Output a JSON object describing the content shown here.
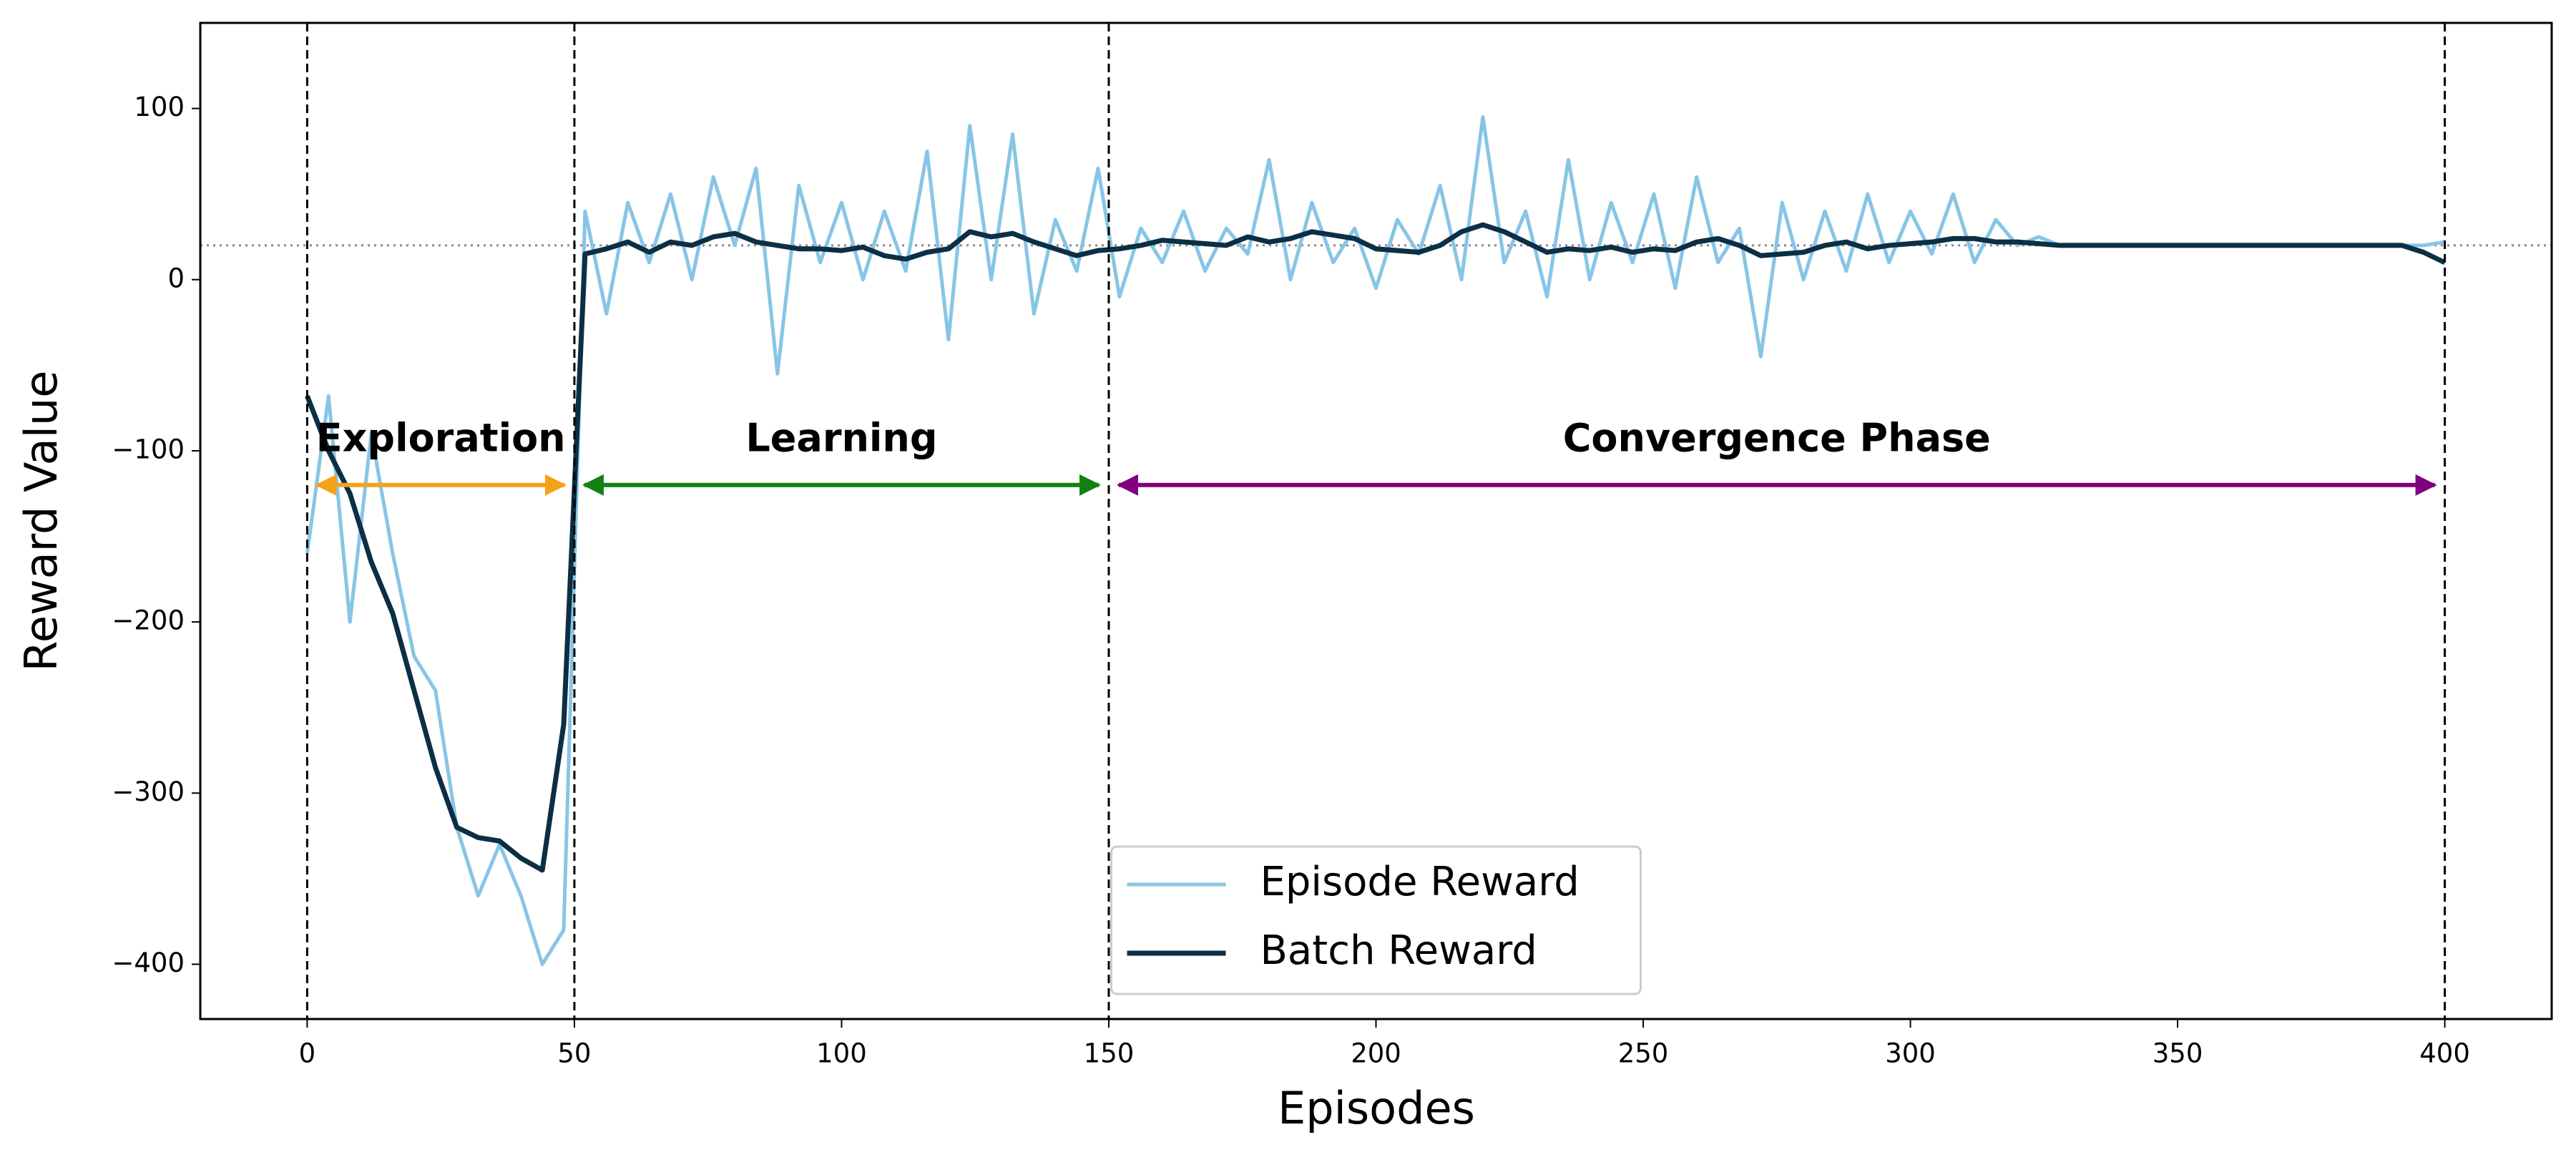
{
  "chart_data": {
    "type": "line",
    "xlabel": "Episodes",
    "ylabel": "Reward Value",
    "x": [
      0,
      4,
      8,
      12,
      16,
      20,
      24,
      28,
      32,
      36,
      40,
      44,
      48,
      52,
      56,
      60,
      64,
      68,
      72,
      76,
      80,
      84,
      88,
      92,
      96,
      100,
      104,
      108,
      112,
      116,
      120,
      124,
      128,
      132,
      136,
      140,
      144,
      148,
      152,
      156,
      160,
      164,
      168,
      172,
      176,
      180,
      184,
      188,
      192,
      196,
      200,
      204,
      208,
      212,
      216,
      220,
      224,
      228,
      232,
      236,
      240,
      244,
      248,
      252,
      256,
      260,
      264,
      268,
      272,
      276,
      280,
      284,
      288,
      292,
      296,
      300,
      304,
      308,
      312,
      316,
      320,
      324,
      328,
      332,
      336,
      340,
      344,
      348,
      352,
      356,
      360,
      364,
      368,
      372,
      376,
      380,
      384,
      388,
      392,
      396,
      400
    ],
    "series": [
      {
        "name": "Episode Reward",
        "color": "#87c5e6",
        "values": [
          -160,
          -68,
          -200,
          -90,
          -160,
          -220,
          -240,
          -320,
          -360,
          -330,
          -360,
          -400,
          -380,
          40,
          -20,
          45,
          10,
          50,
          0,
          60,
          20,
          65,
          -55,
          55,
          10,
          45,
          0,
          40,
          5,
          75,
          -35,
          90,
          0,
          85,
          -20,
          35,
          5,
          65,
          -10,
          30,
          10,
          40,
          5,
          30,
          15,
          70,
          0,
          45,
          10,
          30,
          -5,
          35,
          15,
          55,
          0,
          95,
          10,
          40,
          -10,
          70,
          0,
          45,
          10,
          50,
          -5,
          60,
          10,
          30,
          -45,
          45,
          0,
          40,
          5,
          50,
          10,
          40,
          15,
          50,
          10,
          35,
          20,
          25,
          20,
          20,
          20,
          20,
          20,
          20,
          20,
          20,
          20,
          20,
          20,
          20,
          20,
          20,
          20,
          20,
          20,
          20,
          22
        ]
      },
      {
        "name": "Batch Reward",
        "color": "#0b2f44",
        "values": [
          -68,
          -100,
          -125,
          -165,
          -195,
          -240,
          -285,
          -320,
          -326,
          -328,
          -338,
          -345,
          -260,
          15,
          18,
          22,
          16,
          22,
          20,
          25,
          27,
          22,
          20,
          18,
          18,
          17,
          19,
          14,
          12,
          16,
          18,
          28,
          25,
          27,
          22,
          18,
          14,
          17,
          18,
          20,
          23,
          22,
          21,
          20,
          25,
          22,
          24,
          28,
          26,
          24,
          18,
          17,
          16,
          20,
          28,
          32,
          28,
          22,
          16,
          18,
          17,
          19,
          16,
          18,
          17,
          22,
          24,
          20,
          14,
          15,
          16,
          20,
          22,
          18,
          20,
          21,
          22,
          24,
          24,
          22,
          22,
          21,
          20,
          20,
          20,
          20,
          20,
          20,
          20,
          20,
          20,
          20,
          20,
          20,
          20,
          20,
          20,
          20,
          20,
          16,
          10
        ]
      }
    ],
    "xlim": [
      -20,
      420
    ],
    "ylim": [
      -432,
      150
    ],
    "xticks": [
      0,
      50,
      100,
      150,
      200,
      250,
      300,
      350,
      400
    ],
    "yticks": [
      {
        "value": -400,
        "label": "−400"
      },
      {
        "value": -300,
        "label": "−300"
      },
      {
        "value": -200,
        "label": "−200"
      },
      {
        "value": -100,
        "label": "−100"
      },
      0,
      100
    ],
    "vlines": [
      0,
      50,
      150,
      400
    ],
    "hline": 20,
    "arrow_y": -120,
    "phases": [
      {
        "label": "Exploration",
        "start": 0,
        "end": 50,
        "color": "#f5a21b"
      },
      {
        "label": "Learning",
        "start": 50,
        "end": 150,
        "color": "#138013"
      },
      {
        "label": "Convergence Phase",
        "start": 150,
        "end": 400,
        "color": "#800080"
      }
    ],
    "legend": "lower center"
  }
}
